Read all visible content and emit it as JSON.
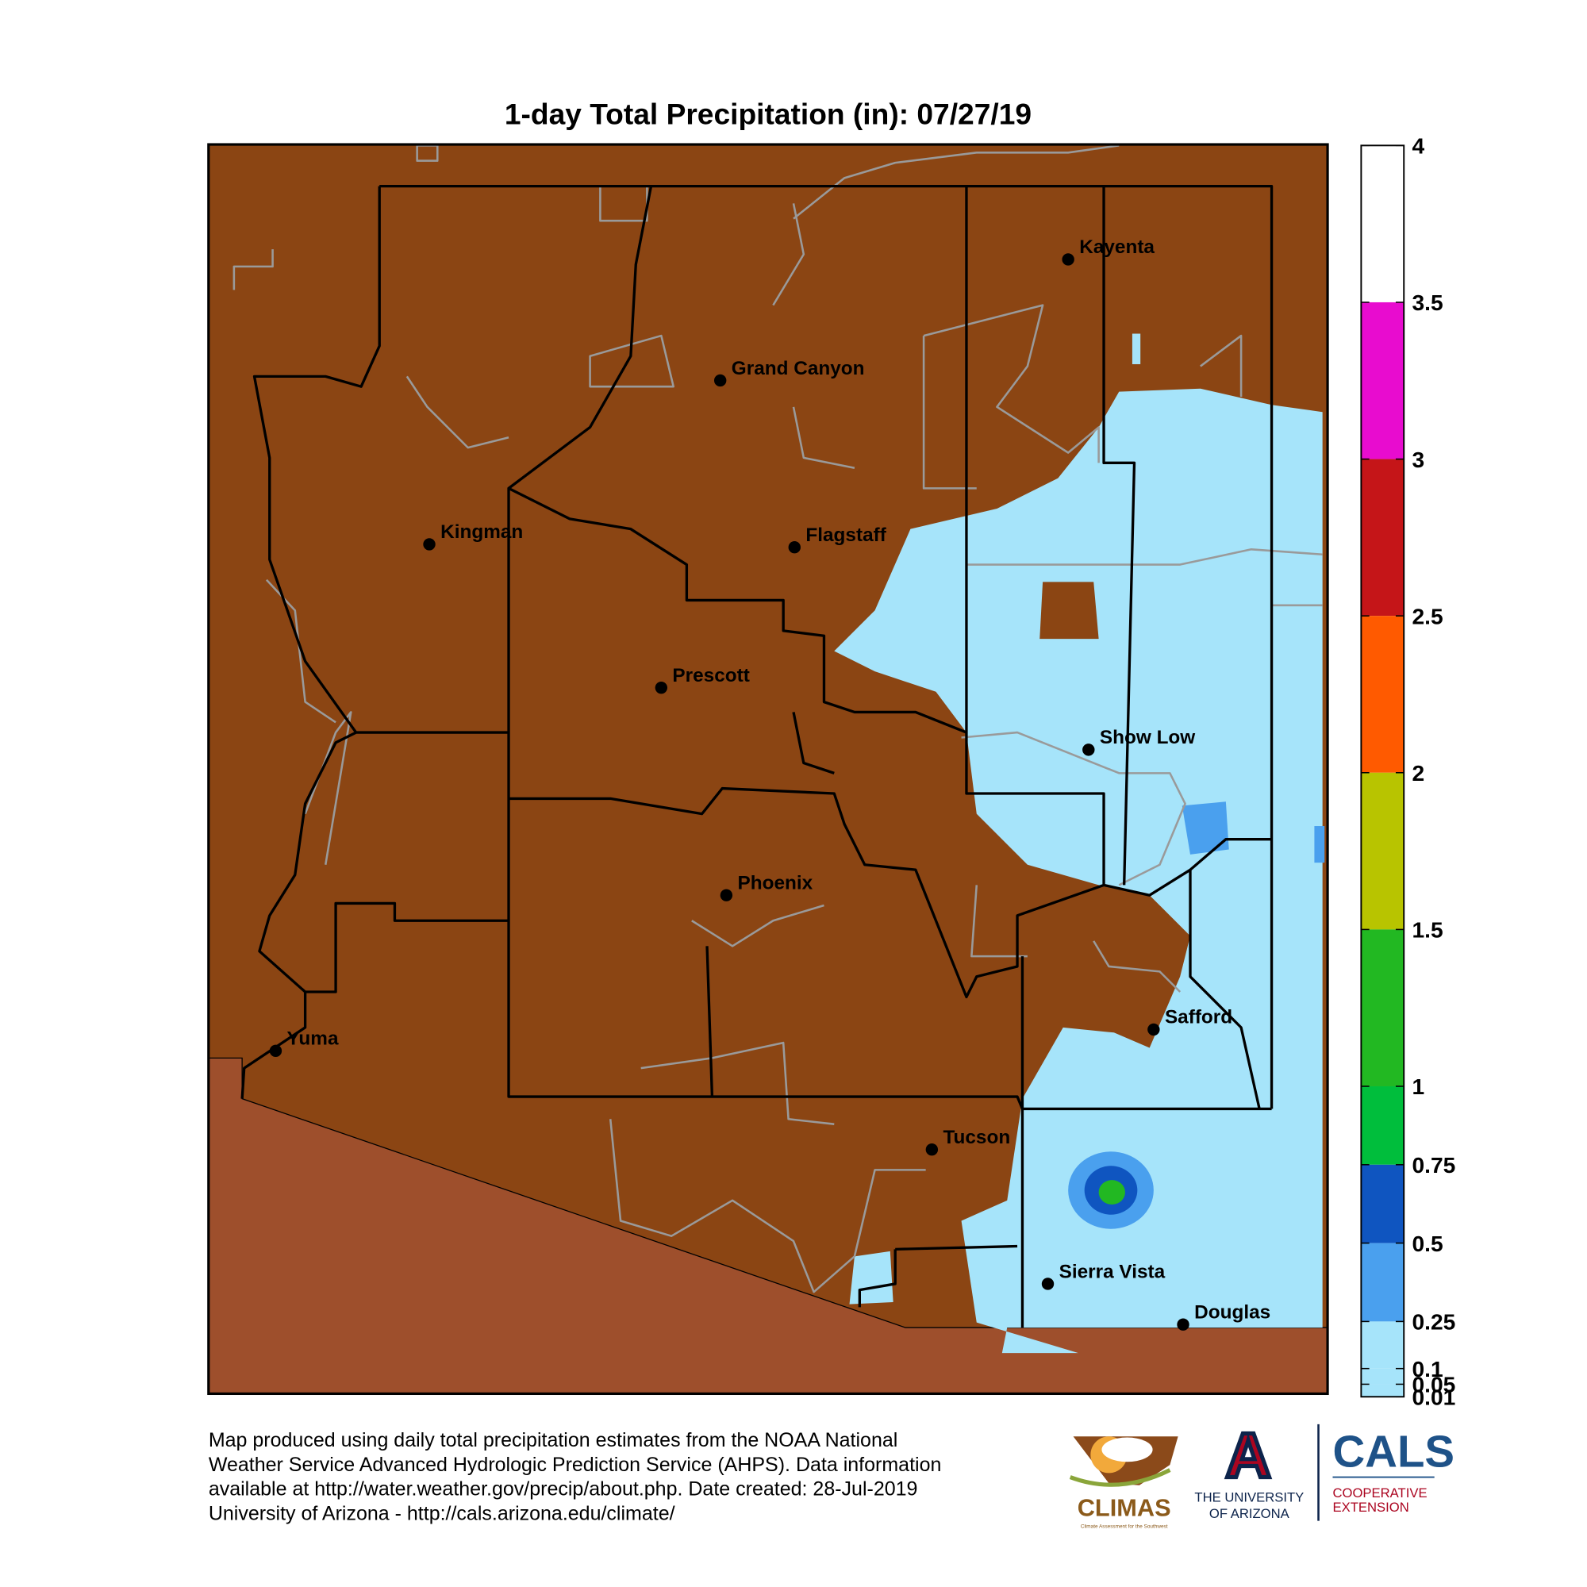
{
  "title": "1-day Total Precipitation (in): 07/27/19",
  "colorbar": {
    "range": [
      0.01,
      4
    ],
    "ticks": [
      4,
      3.5,
      3,
      2.5,
      2,
      1.5,
      1,
      0.75,
      0.5,
      0.25,
      0.1,
      0.05,
      0.01
    ],
    "colors": [
      "#ffffff",
      "#e80ccf",
      "#c51518",
      "#ff5a00",
      "#b8c400",
      "#22b822",
      "#00be3c",
      "#0f55c0",
      "#4aa0ee",
      "#a6e4fa",
      "#a6e4fa",
      "#a6e4fa"
    ]
  },
  "cities": [
    "Kayenta",
    "Grand Canyon",
    "Kingman",
    "Flagstaff",
    "Prescott",
    "Show Low",
    "Phoenix",
    "Safford",
    "Yuma",
    "Tucson",
    "Sierra Vista",
    "Douglas"
  ],
  "footer": [
    "Map produced using daily total precipitation estimates from the NOAA National",
    "Weather Service Advanced Hydrologic Prediction Service (AHPS). Data information",
    "available at http://water.weather.gov/precip/about.php. Date created: 28-Jul-2019",
    "University of Arizona - http://cals.arizona.edu/climate/"
  ],
  "logos": {
    "climas": "CLIMAS",
    "climas_sub": "Climate Assessment for the Southwest",
    "ua": [
      "THE UNIVERSITY",
      "OF ARIZONA"
    ],
    "ua_mark": "A",
    "cals": "CALS",
    "cals_sub": [
      "COOPERATIVE",
      "EXTENSION"
    ]
  }
}
